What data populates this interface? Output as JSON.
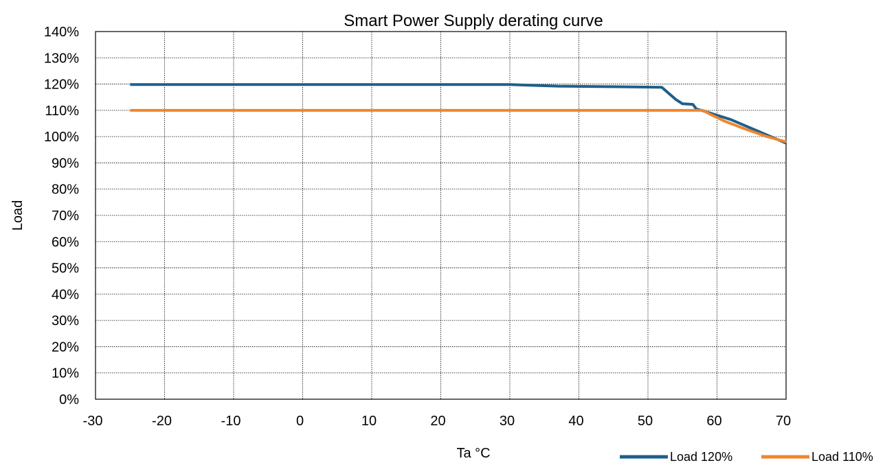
{
  "chart_data": {
    "type": "line",
    "title": "Smart Power Supply derating curve",
    "xlabel": "Ta °C",
    "ylabel": "Load",
    "xlim": [
      -30,
      70
    ],
    "ylim": [
      0,
      140
    ],
    "x_ticks": [
      -30,
      -20,
      -10,
      0,
      10,
      20,
      30,
      40,
      50,
      60,
      70
    ],
    "y_ticks": [
      0,
      10,
      20,
      30,
      40,
      50,
      60,
      70,
      80,
      90,
      100,
      110,
      120,
      130,
      140
    ],
    "x_tick_labels": [
      "-30",
      "-20",
      "-10",
      "0",
      "10",
      "20",
      "30",
      "40",
      "50",
      "60",
      "70"
    ],
    "y_tick_labels": [
      "0%",
      "10%",
      "20%",
      "30%",
      "40%",
      "50%",
      "60%",
      "70%",
      "80%",
      "90%",
      "100%",
      "110%",
      "120%",
      "130%",
      "140%"
    ],
    "grid": true,
    "legend_position": "bottom-right",
    "series": [
      {
        "name": "Load 120%",
        "color": "#1F5F8B",
        "points": [
          [
            -25,
            119.8
          ],
          [
            30,
            119.8
          ],
          [
            37,
            119.2
          ],
          [
            45,
            119.0
          ],
          [
            52,
            118.8
          ],
          [
            54,
            114.2
          ],
          [
            55,
            112.5
          ],
          [
            56.5,
            112.3
          ],
          [
            57,
            110.5
          ],
          [
            58,
            109.8
          ],
          [
            62,
            106.5
          ],
          [
            70,
            97.5
          ]
        ]
      },
      {
        "name": "Load 110%",
        "color": "#F0852D",
        "points": [
          [
            -25,
            110.0
          ],
          [
            58,
            110.0
          ],
          [
            59,
            108.5
          ],
          [
            61,
            106.0
          ],
          [
            64,
            103.0
          ],
          [
            67,
            100.2
          ],
          [
            70,
            98.0
          ]
        ]
      }
    ]
  }
}
